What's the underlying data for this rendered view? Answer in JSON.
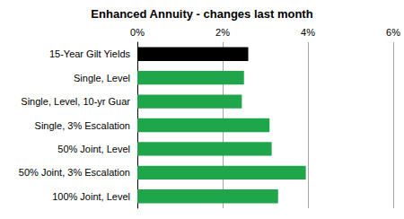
{
  "chart_data": {
    "type": "bar",
    "orientation": "horizontal",
    "title": "Enhanced Annuity - changes last month",
    "categories": [
      "15-Year Gilt Yields",
      "Single, Level",
      "Single, Level, 10-yr Guar",
      "Single, 3% Escalation",
      "50% Joint, Level",
      "50% Joint, 3% Escalation",
      "100% Joint, Level"
    ],
    "values": [
      2.6,
      2.5,
      2.45,
      3.1,
      3.15,
      3.95,
      3.3
    ],
    "colors": [
      "#000000",
      "#1fa64a",
      "#1fa64a",
      "#1fa64a",
      "#1fa64a",
      "#1fa64a",
      "#1fa64a"
    ],
    "xlim": [
      0,
      6
    ],
    "xticks": [
      {
        "value": 0,
        "label": "0%"
      },
      {
        "value": 2,
        "label": "2%"
      },
      {
        "value": 4,
        "label": "4%"
      },
      {
        "value": 6,
        "label": "6%"
      }
    ],
    "grid": true
  }
}
